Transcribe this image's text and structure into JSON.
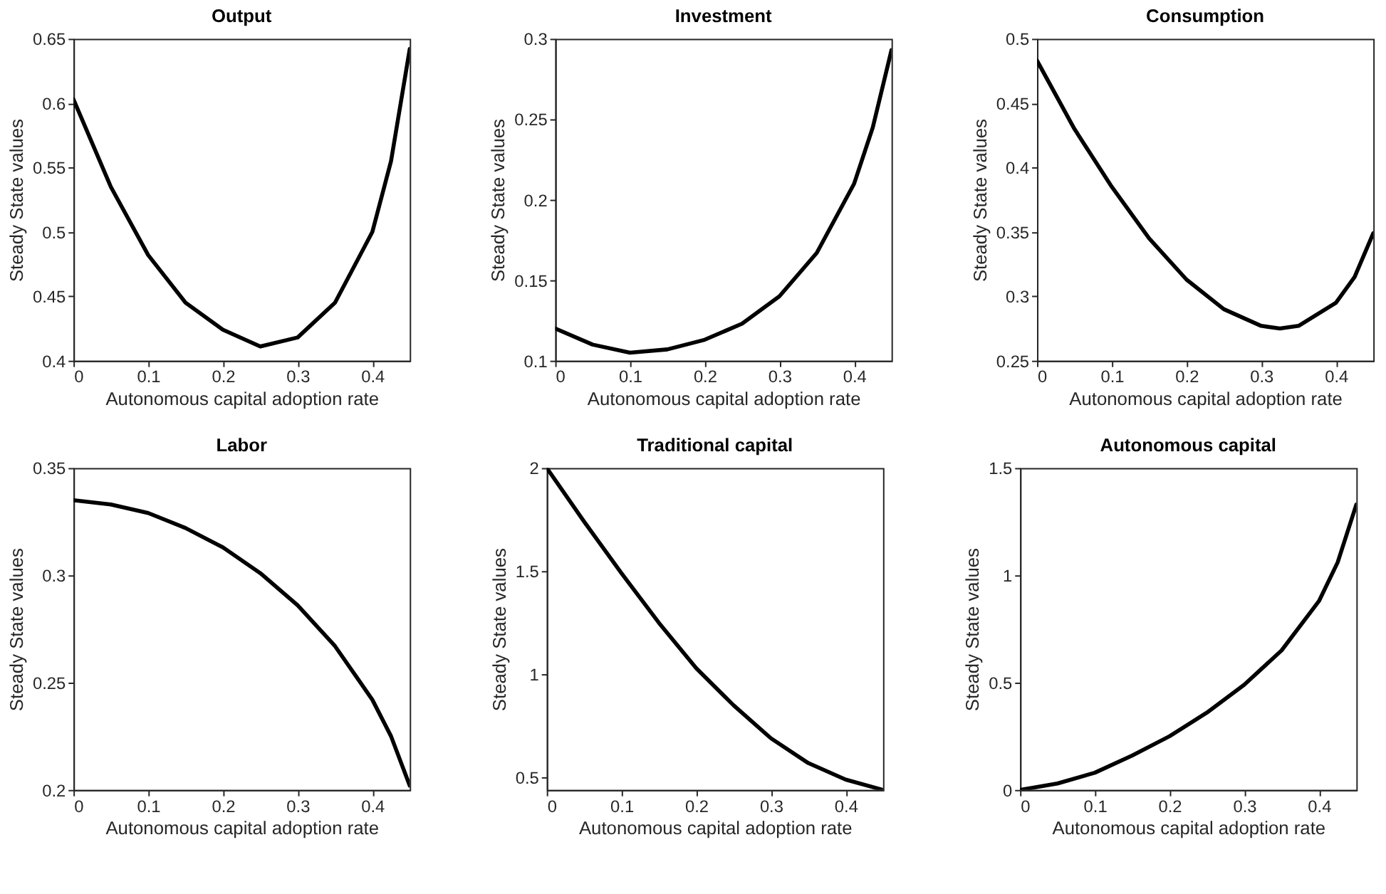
{
  "chart_data": [
    {
      "type": "line",
      "title": "Output",
      "xlabel": "Autonomous capital adoption rate",
      "ylabel": "Steady State values",
      "x": [
        0,
        0.05,
        0.1,
        0.15,
        0.2,
        0.25,
        0.3,
        0.35,
        0.4,
        0.425,
        0.45
      ],
      "series": [
        {
          "color": "#000000",
          "values": [
            0.603,
            0.535,
            0.482,
            0.445,
            0.424,
            0.411,
            0.418,
            0.445,
            0.5,
            0.555,
            0.642
          ]
        }
      ],
      "xlim": [
        0,
        0.45
      ],
      "ylim": [
        0.4,
        0.65
      ],
      "xticks": [
        0,
        0.1,
        0.2,
        0.3,
        0.4
      ],
      "yticks": [
        0.4,
        0.45,
        0.5,
        0.55,
        0.6,
        0.65
      ]
    },
    {
      "type": "line",
      "title": "Investment",
      "xlabel": "Autonomous capital adoption rate",
      "ylabel": "Steady State values",
      "x": [
        0,
        0.05,
        0.1,
        0.15,
        0.2,
        0.25,
        0.3,
        0.35,
        0.4,
        0.425,
        0.45
      ],
      "series": [
        {
          "color": "#000000",
          "values": [
            0.12,
            0.11,
            0.105,
            0.107,
            0.113,
            0.123,
            0.14,
            0.167,
            0.21,
            0.245,
            0.293
          ]
        }
      ],
      "xlim": [
        0,
        0.45
      ],
      "ylim": [
        0.1,
        0.3
      ],
      "xticks": [
        0,
        0.1,
        0.2,
        0.3,
        0.4
      ],
      "yticks": [
        0.1,
        0.15,
        0.2,
        0.25,
        0.3
      ]
    },
    {
      "type": "line",
      "title": "Consumption",
      "xlabel": "Autonomous capital adoption rate",
      "ylabel": "Steady State values",
      "x": [
        0,
        0.05,
        0.1,
        0.15,
        0.2,
        0.25,
        0.3,
        0.325,
        0.35,
        0.4,
        0.425,
        0.45
      ],
      "series": [
        {
          "color": "#000000",
          "values": [
            0.483,
            0.43,
            0.385,
            0.345,
            0.313,
            0.29,
            0.277,
            0.275,
            0.277,
            0.295,
            0.315,
            0.349
          ]
        }
      ],
      "xlim": [
        0,
        0.45
      ],
      "ylim": [
        0.25,
        0.5
      ],
      "xticks": [
        0,
        0.1,
        0.2,
        0.3,
        0.4
      ],
      "yticks": [
        0.25,
        0.3,
        0.35,
        0.4,
        0.45,
        0.5
      ]
    },
    {
      "type": "line",
      "title": "Labor",
      "xlabel": "Autonomous capital adoption rate",
      "ylabel": "Steady State values",
      "x": [
        0,
        0.05,
        0.1,
        0.15,
        0.2,
        0.25,
        0.3,
        0.35,
        0.4,
        0.425,
        0.45
      ],
      "series": [
        {
          "color": "#000000",
          "values": [
            0.335,
            0.333,
            0.329,
            0.322,
            0.313,
            0.301,
            0.286,
            0.267,
            0.242,
            0.225,
            0.202
          ]
        }
      ],
      "xlim": [
        0,
        0.45
      ],
      "ylim": [
        0.2,
        0.35
      ],
      "xticks": [
        0,
        0.1,
        0.2,
        0.3,
        0.4
      ],
      "yticks": [
        0.2,
        0.25,
        0.3,
        0.35
      ]
    },
    {
      "type": "line",
      "title": "Traditional capital",
      "xlabel": "Autonomous capital adoption rate",
      "ylabel": "Steady State values",
      "x": [
        0,
        0.05,
        0.1,
        0.15,
        0.2,
        0.25,
        0.3,
        0.35,
        0.4,
        0.45
      ],
      "series": [
        {
          "color": "#000000",
          "values": [
            2.0,
            1.74,
            1.49,
            1.25,
            1.03,
            0.85,
            0.69,
            0.57,
            0.49,
            0.44
          ]
        }
      ],
      "xlim": [
        0,
        0.45
      ],
      "ylim": [
        0.44,
        2
      ],
      "xticks": [
        0,
        0.1,
        0.2,
        0.3,
        0.4
      ],
      "yticks": [
        0.5,
        1,
        1.5,
        2
      ]
    },
    {
      "type": "line",
      "title": "Autonomous capital",
      "xlabel": "Autonomous capital adoption rate",
      "ylabel": "Steady State values",
      "x": [
        0,
        0.05,
        0.1,
        0.15,
        0.2,
        0.25,
        0.3,
        0.35,
        0.4,
        0.425,
        0.45
      ],
      "series": [
        {
          "color": "#000000",
          "values": [
            0,
            0.03,
            0.08,
            0.16,
            0.25,
            0.36,
            0.49,
            0.65,
            0.88,
            1.06,
            1.33
          ]
        }
      ],
      "xlim": [
        0,
        0.45
      ],
      "ylim": [
        0,
        1.5
      ],
      "xticks": [
        0,
        0.1,
        0.2,
        0.3,
        0.4
      ],
      "yticks": [
        0,
        0.5,
        1,
        1.5
      ]
    }
  ]
}
